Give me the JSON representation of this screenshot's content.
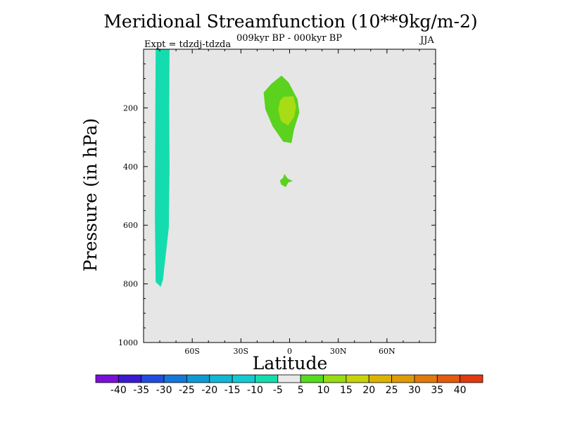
{
  "chart_data": {
    "type": "heatmap",
    "title": "Meridional Streamfunction (10**9kg/m-2)",
    "subtitle": "009kyr BP - 000kyr BP",
    "left_label": "Expt = tdzdj-tdzda",
    "right_label": "JJA",
    "xlabel": "Latitude",
    "ylabel": "Pressure (in hPa)",
    "xlim": [
      -90,
      90
    ],
    "ylim": [
      1000,
      0
    ],
    "x_ticks": [
      -60,
      -30,
      0,
      30,
      60
    ],
    "x_tick_labels": [
      "60S",
      "30S",
      "0",
      "30N",
      "60N"
    ],
    "y_ticks": [
      200,
      400,
      600,
      800,
      1000
    ],
    "y_tick_labels": [
      "200",
      "400",
      "600",
      "800",
      "1000"
    ],
    "background_value": 0,
    "regions": [
      {
        "name": "negative-cell-southern",
        "value": -7,
        "level": "-10 to -5",
        "lat_range": [
          -83,
          -74
        ],
        "pressure_range": [
          0,
          810
        ]
      },
      {
        "name": "positive-cell-upper",
        "value": 8,
        "level": "5 to 10",
        "lat_range": [
          -16,
          6
        ],
        "pressure_range": [
          90,
          320
        ]
      },
      {
        "name": "positive-core-upper",
        "value": 12,
        "level": "10 to 15",
        "lat_range": [
          -7,
          4
        ],
        "pressure_range": [
          160,
          260
        ]
      },
      {
        "name": "positive-cell-mid",
        "value": 7,
        "level": "5 to 10",
        "lat_range": [
          -6,
          2
        ],
        "pressure_range": [
          425,
          470
        ]
      }
    ],
    "colorbar": {
      "labels": [
        "-40",
        "-35",
        "-30",
        "-25",
        "-20",
        "-15",
        "-10",
        "-5",
        "5",
        "10",
        "15",
        "20",
        "25",
        "30",
        "35",
        "40"
      ],
      "colors": [
        "#7a10d8",
        "#3a1ad2",
        "#1f4de0",
        "#1578d8",
        "#0d9ad4",
        "#12b7d6",
        "#10cbd2",
        "#14dcae",
        "#e9e9e9",
        "#55dc1e",
        "#98dc12",
        "#c8d408",
        "#dcb400",
        "#e09a05",
        "#e27a0a",
        "#e45a0e",
        "#e03a10"
      ]
    },
    "colors": {
      "background": "#e6e6e6",
      "negative_level": "#14dcae",
      "positive_level": "#5ad21e",
      "positive_core": "#a8dc14"
    }
  }
}
